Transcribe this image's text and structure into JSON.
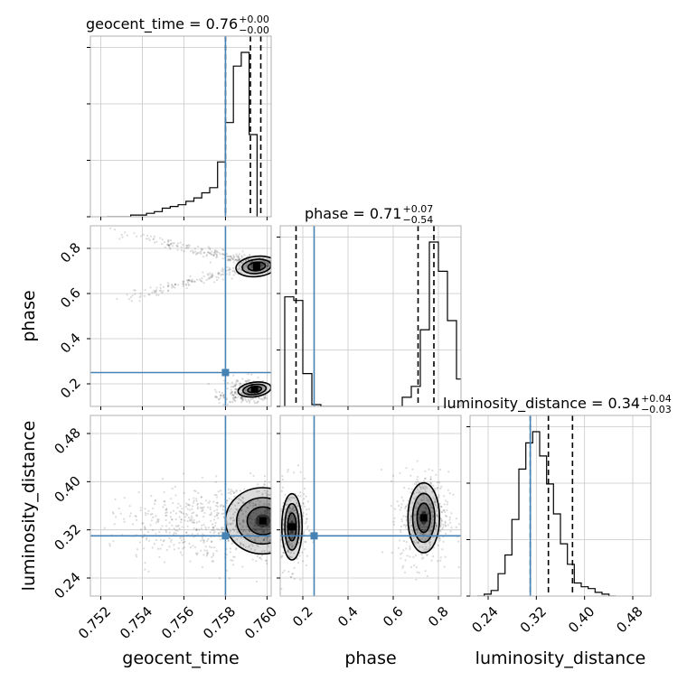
{
  "chart_data": {
    "type": "corner",
    "parameters": [
      {
        "name": "geocent_time",
        "axis_label": "geocent_time",
        "ticks": [
          "0.752",
          "0.754",
          "0.756",
          "0.758",
          "0.760"
        ],
        "tick_values": [
          0.752,
          0.754,
          0.756,
          0.758,
          0.76
        ],
        "range": [
          0.7515,
          0.7602
        ],
        "truth": 0.758
      },
      {
        "name": "phase",
        "axis_label": "phase",
        "ticks": [
          "0.2",
          "0.4",
          "0.6",
          "0.8"
        ],
        "tick_values": [
          0.2,
          0.4,
          0.6,
          0.8
        ],
        "range": [
          0.1,
          0.9
        ],
        "truth": 0.25
      },
      {
        "name": "luminosity_distance",
        "axis_label": "luminosity_distance",
        "ticks": [
          "0.24",
          "0.32",
          "0.40",
          "0.48"
        ],
        "tick_values": [
          0.24,
          0.32,
          0.4,
          0.48
        ],
        "range": [
          0.21,
          0.51
        ],
        "truth": 0.31
      }
    ],
    "titles": [
      {
        "prefix": "geocent_time = 0.76",
        "sup": "+0.00",
        "sub": "−0.00"
      },
      {
        "prefix": "phase = 0.71",
        "sup": "+0.07",
        "sub": "−0.54"
      },
      {
        "prefix": "luminosity_distance = 0.34",
        "sup": "+0.04",
        "sub": "−0.03"
      }
    ],
    "quantiles": {
      "geocent_time": [
        0.758,
        0.7592,
        0.7597
      ],
      "phase": [
        0.17,
        0.71,
        0.78
      ],
      "luminosity_distance": [
        0.31,
        0.34,
        0.38
      ]
    },
    "histograms": {
      "geocent_time": {
        "bin_start": 0.7523,
        "bin_width": 0.00038,
        "counts": [
          0,
          0,
          0,
          0.01,
          0.01,
          0.02,
          0.03,
          0.05,
          0.06,
          0.07,
          0.09,
          0.11,
          0.14,
          0.17,
          0.32,
          0.55,
          0.88,
          0.96,
          0.48
        ]
      },
      "phase": {
        "bin_start": 0.12,
        "bin_width": 0.04,
        "counts": [
          0.6,
          0.58,
          0.18,
          0.01,
          0,
          0,
          0,
          0,
          0,
          0,
          0,
          0,
          0,
          0.05,
          0.11,
          0.42,
          0.9,
          0.74,
          0.47,
          0.15
        ]
      },
      "luminosity_distance": {
        "bin_start": 0.222,
        "bin_width": 0.0115,
        "counts": [
          0,
          0.01,
          0.03,
          0.12,
          0.22,
          0.41,
          0.68,
          0.82,
          0.88,
          0.75,
          0.6,
          0.44,
          0.28,
          0.17,
          0.07,
          0.05,
          0.04,
          0.02,
          0.01,
          0
        ]
      }
    },
    "grid": true,
    "truth_color": "#4682b4"
  }
}
